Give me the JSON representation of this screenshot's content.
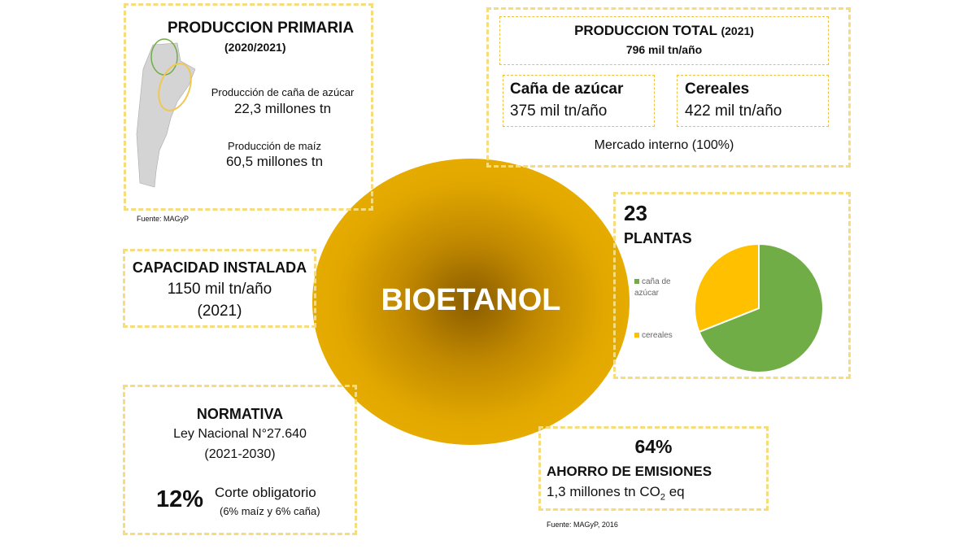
{
  "center": {
    "title": "BIOETANOL"
  },
  "primaria": {
    "title": "PRODUCCION PRIMARIA",
    "period": "(2020/2021)",
    "cane_label": "Producción  de caña de azúcar",
    "cane_value": "22,3 millones tn",
    "corn_label": "Producción  de maíz",
    "corn_value": "60,5 millones tn",
    "source": "Fuente: MAGyP"
  },
  "total": {
    "title": "PRODUCCION TOTAL",
    "year": "(2021)",
    "value": "796 mil tn/año",
    "cane_title": "Caña de azúcar",
    "cane_value": "375 mil tn/año",
    "cereal_title": "Cereales",
    "cereal_value": "422 mil tn/año",
    "market": "Mercado interno (100%)"
  },
  "capacidad": {
    "title": "CAPACIDAD INSTALADA",
    "value": "1150 mil tn/año",
    "year": "(2021)"
  },
  "plantas": {
    "count": "23",
    "label": "PLANTAS"
  },
  "chart_data": {
    "type": "pie",
    "categories": [
      "caña de azúcar",
      "cereales"
    ],
    "values": [
      0.69,
      0.31
    ],
    "colors": [
      "#70ad47",
      "#ffc000"
    ],
    "legend": "left"
  },
  "normativa": {
    "title": "NORMATIVA",
    "law": "Ley Nacional N°27.640",
    "period": "(2021-2030)",
    "percent": "12%",
    "cut_label": "Corte obligatorio",
    "cut_detail": "(6% maíz y 6% caña)"
  },
  "ahorro": {
    "percent": "64%",
    "title": "AHORRO DE EMISIONES",
    "value_pre": "1,3 millones tn CO",
    "subscript": "2",
    "value_post": " eq",
    "source": "Fuente: MAGyP, 2016"
  }
}
